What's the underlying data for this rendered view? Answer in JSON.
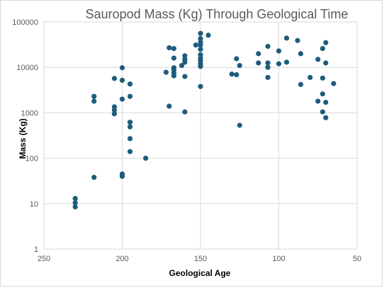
{
  "chart_data": {
    "type": "scatter",
    "title": "Sauropod Mass (Kg) Through Geological Time",
    "xlabel": "Geological Age",
    "ylabel": "Mass (Kg)",
    "x_reversed": true,
    "xlim": [
      50,
      250
    ],
    "x_ticks": [
      250,
      200,
      150,
      100,
      50
    ],
    "y_scale": "log",
    "ylim": [
      1,
      100000
    ],
    "y_ticks": [
      1,
      10,
      100,
      1000,
      10000,
      100000
    ],
    "grid": {
      "x": true,
      "y": true
    },
    "legend": "none",
    "marker_color": "#1d5c7c",
    "gridline_color": "#d9d9d9",
    "points": [
      {
        "x": 230,
        "y": 13
      },
      {
        "x": 230,
        "y": 10.5
      },
      {
        "x": 230,
        "y": 8.5
      },
      {
        "x": 218,
        "y": 2300
      },
      {
        "x": 218,
        "y": 1800
      },
      {
        "x": 218,
        "y": 38
      },
      {
        "x": 205,
        "y": 5700
      },
      {
        "x": 205,
        "y": 1350
      },
      {
        "x": 205,
        "y": 1150
      },
      {
        "x": 205,
        "y": 950
      },
      {
        "x": 200,
        "y": 9800
      },
      {
        "x": 200,
        "y": 5200
      },
      {
        "x": 200,
        "y": 2000
      },
      {
        "x": 200,
        "y": 45
      },
      {
        "x": 200,
        "y": 40
      },
      {
        "x": 195,
        "y": 4300
      },
      {
        "x": 195,
        "y": 2300
      },
      {
        "x": 195,
        "y": 620
      },
      {
        "x": 195,
        "y": 490
      },
      {
        "x": 195,
        "y": 270
      },
      {
        "x": 195,
        "y": 140
      },
      {
        "x": 185,
        "y": 100
      },
      {
        "x": 172,
        "y": 7800
      },
      {
        "x": 170,
        "y": 27000
      },
      {
        "x": 170,
        "y": 1400
      },
      {
        "x": 167,
        "y": 26000
      },
      {
        "x": 167,
        "y": 16000
      },
      {
        "x": 167,
        "y": 9800
      },
      {
        "x": 167,
        "y": 8800
      },
      {
        "x": 167,
        "y": 7500
      },
      {
        "x": 167,
        "y": 6500
      },
      {
        "x": 162,
        "y": 11000
      },
      {
        "x": 160,
        "y": 18000
      },
      {
        "x": 160,
        "y": 15000
      },
      {
        "x": 160,
        "y": 13000
      },
      {
        "x": 160,
        "y": 6300
      },
      {
        "x": 160,
        "y": 1050
      },
      {
        "x": 153,
        "y": 31000
      },
      {
        "x": 150,
        "y": 56000
      },
      {
        "x": 150,
        "y": 43000
      },
      {
        "x": 150,
        "y": 36000
      },
      {
        "x": 150,
        "y": 31000
      },
      {
        "x": 150,
        "y": 25000
      },
      {
        "x": 150,
        "y": 19000
      },
      {
        "x": 150,
        "y": 16000
      },
      {
        "x": 150,
        "y": 14000
      },
      {
        "x": 150,
        "y": 12000
      },
      {
        "x": 150,
        "y": 10500
      },
      {
        "x": 150,
        "y": 3800
      },
      {
        "x": 145,
        "y": 51000
      },
      {
        "x": 130,
        "y": 7100
      },
      {
        "x": 127,
        "y": 15500
      },
      {
        "x": 127,
        "y": 6900
      },
      {
        "x": 125,
        "y": 11000
      },
      {
        "x": 125,
        "y": 530
      },
      {
        "x": 113,
        "y": 20000
      },
      {
        "x": 113,
        "y": 12500
      },
      {
        "x": 107,
        "y": 29000
      },
      {
        "x": 107,
        "y": 12500
      },
      {
        "x": 107,
        "y": 10000
      },
      {
        "x": 107,
        "y": 6000
      },
      {
        "x": 100,
        "y": 23000
      },
      {
        "x": 100,
        "y": 12000
      },
      {
        "x": 95,
        "y": 44000
      },
      {
        "x": 95,
        "y": 13000
      },
      {
        "x": 88,
        "y": 39000
      },
      {
        "x": 86,
        "y": 20000
      },
      {
        "x": 86,
        "y": 4200
      },
      {
        "x": 80,
        "y": 6000
      },
      {
        "x": 75,
        "y": 15000
      },
      {
        "x": 75,
        "y": 1800
      },
      {
        "x": 72,
        "y": 26000
      },
      {
        "x": 72,
        "y": 5800
      },
      {
        "x": 72,
        "y": 2600
      },
      {
        "x": 72,
        "y": 1050
      },
      {
        "x": 70,
        "y": 35000
      },
      {
        "x": 70,
        "y": 12500
      },
      {
        "x": 70,
        "y": 1700
      },
      {
        "x": 70,
        "y": 780
      },
      {
        "x": 65,
        "y": 4400
      }
    ]
  }
}
